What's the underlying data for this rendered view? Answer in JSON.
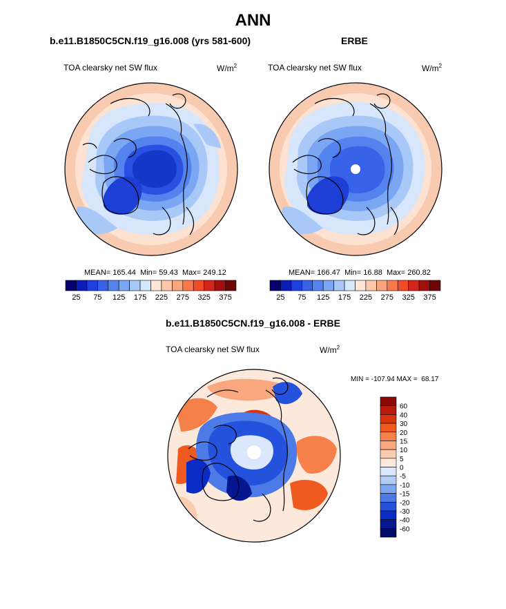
{
  "page": {
    "title": "ANN",
    "units_prefix": "W/m",
    "units_exp": "2"
  },
  "panels": {
    "model": {
      "heading": "b.e11.B1850C5CN.f19_g16.008 (yrs 581-600)",
      "variable": "TOA clearsky net SW flux",
      "stats": {
        "mean": "165.44",
        "min": "59.43",
        "max": "249.12"
      }
    },
    "obs": {
      "heading": "ERBE",
      "variable": "TOA clearsky net SW flux",
      "stats": {
        "mean": "166.47",
        "min": "16.88",
        "max": "260.82"
      }
    },
    "diff": {
      "heading": "b.e11.B1850C5CN.f19_g16.008 - ERBE",
      "variable": "TOA clearsky net SW flux",
      "stats": {
        "min": "-107.94",
        "max": "68.17"
      }
    }
  },
  "labels": {
    "mean": "MEAN=",
    "min": "Min=",
    "max": "Max=",
    "diff_min": "MIN =",
    "diff_max": "MAX ="
  },
  "chart_data": [
    {
      "type": "heatmap",
      "projection": "north-polar-stereographic",
      "title": "b.e11.B1850C5CN.f19_g16.008 (yrs 581-600)",
      "field": "TOA clearsky net SW flux",
      "units": "W/m2",
      "colorbar": {
        "levels": [
          25,
          50,
          75,
          100,
          125,
          150,
          175,
          200,
          225,
          250,
          275,
          300,
          325,
          350,
          375
        ],
        "tick_labels": [
          "25",
          "75",
          "125",
          "175",
          "225",
          "275",
          "325",
          "375"
        ],
        "colors": [
          "#08006e",
          "#0a1db8",
          "#1f3fe0",
          "#3863e8",
          "#5483ee",
          "#7ba6f3",
          "#a8c8f8",
          "#d6e6fb",
          "#fde7d8",
          "#fcc7aa",
          "#fba57f",
          "#f9794f",
          "#ef4c27",
          "#d2261a",
          "#a30f0e",
          "#6e0606"
        ]
      },
      "mean": 165.44,
      "min": 59.43,
      "max": 249.12
    },
    {
      "type": "heatmap",
      "projection": "north-polar-stereographic",
      "title": "ERBE",
      "field": "TOA clearsky net SW flux",
      "units": "W/m2",
      "colorbar": {
        "levels": [
          25,
          50,
          75,
          100,
          125,
          150,
          175,
          200,
          225,
          250,
          275,
          300,
          325,
          350,
          375
        ],
        "tick_labels": [
          "25",
          "75",
          "125",
          "175",
          "225",
          "275",
          "325",
          "375"
        ]
      },
      "mean": 166.47,
      "min": 16.88,
      "max": 260.82
    },
    {
      "type": "heatmap",
      "projection": "north-polar-stereographic",
      "title": "b.e11.B1850C5CN.f19_g16.008 - ERBE",
      "field": "TOA clearsky net SW flux",
      "units": "W/m2",
      "colorbar": {
        "levels": [
          60,
          40,
          30,
          20,
          15,
          10,
          5,
          0,
          -5,
          -10,
          -15,
          -20,
          -30,
          -40,
          -60
        ],
        "tick_labels": [
          "60",
          "40",
          "30",
          "20",
          "15",
          "10",
          "5",
          "0",
          "-5",
          "-10",
          "-15",
          "-20",
          "-30",
          "-40",
          "-60"
        ],
        "colors": [
          "#8b0a05",
          "#b81a0c",
          "#d9340f",
          "#ee5a1f",
          "#f6804a",
          "#f9a77e",
          "#fcccb2",
          "#fde9dc",
          "#dbe7fb",
          "#b3ccf6",
          "#7ea6f0",
          "#4c7be8",
          "#2452dc",
          "#0b2cc4",
          "#051690",
          "#020a6a"
        ]
      },
      "min": -107.94,
      "max": 68.17
    }
  ]
}
